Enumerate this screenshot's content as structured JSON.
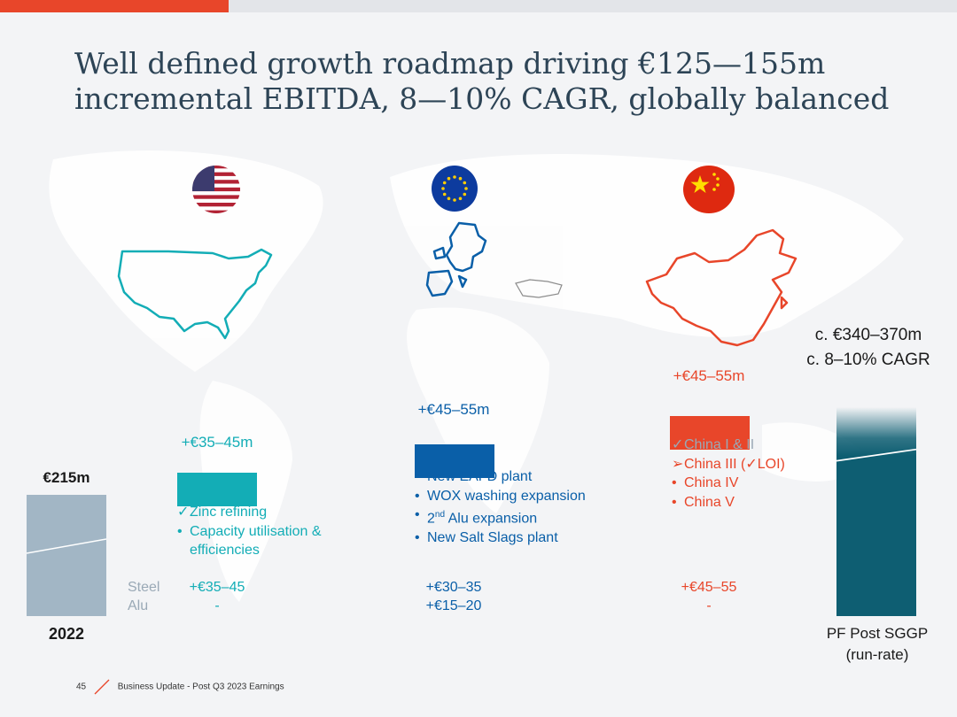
{
  "title": "Well defined growth roadmap driving €125—155m incremental EBITDA, 8—10% CAGR, globally balanced",
  "colors": {
    "accent": "#e8462a",
    "us": "#13adb6",
    "eu": "#0a5fa8",
    "cn": "#e8462a",
    "base": "#9fb4c4",
    "end": "#0e5e72"
  },
  "chart_data": {
    "type": "bar",
    "title": "Well defined growth roadmap driving €125—155m incremental EBITDA, 8—10% CAGR, globally balanced",
    "categories": [
      "2022",
      "US",
      "EU",
      "China",
      "PF Post SGGP (run-rate)"
    ],
    "values_low": [
      215,
      35,
      45,
      45,
      340
    ],
    "values_high": [
      215,
      45,
      55,
      55,
      370
    ],
    "labels": [
      "€215m",
      "+€35–45m",
      "+€45–55m",
      "+€45–55m",
      "c. €340–370m"
    ],
    "annotation": "c. 8–10% CAGR",
    "breakdown": {
      "row_labels": [
        "Steel",
        "Alu"
      ],
      "us": [
        "+€35–45",
        "-"
      ],
      "eu": [
        "+€30–35",
        "+€15–20"
      ],
      "cn": [
        "+€45–55",
        "-"
      ]
    }
  },
  "labels": {
    "base_value": "€215m",
    "base_year": "2022",
    "us_value": "+€35–45m",
    "eu_value": "+€45–55m",
    "cn_value": "+€45–55m",
    "end_value": "c. €340–370m",
    "end_cagr": "c. 8–10% CAGR",
    "end_label_1": "PF Post SGGP",
    "end_label_2": "(run-rate)"
  },
  "us_list": [
    {
      "marker": "✓",
      "text": "Zinc refining"
    },
    {
      "marker": "•",
      "text": "Capacity utilisation &"
    },
    {
      "marker": "",
      "text": "efficiencies"
    }
  ],
  "eu_list": [
    {
      "marker": "•",
      "text": "New EAFD plant"
    },
    {
      "marker": "•",
      "text": "WOX washing expansion"
    },
    {
      "marker": "•",
      "text": "Alu expansion",
      "pre": "2",
      "sup": "nd"
    },
    {
      "marker": "•",
      "text": "New Salt Slags plant"
    }
  ],
  "cn_list": [
    {
      "marker": "✓",
      "text": "China I & II"
    },
    {
      "marker": "➢",
      "text": "China III (✓LOI)"
    },
    {
      "marker": "•",
      "text": "China IV"
    },
    {
      "marker": "•",
      "text": "China V"
    }
  ],
  "rows": {
    "steel": "Steel",
    "alu": "Alu",
    "us_steel": "+€35–45",
    "us_alu": "-",
    "eu_steel": "+€30–35",
    "eu_alu": "+€15–20",
    "cn_steel": "+€45–55",
    "cn_alu": "-"
  },
  "footer": {
    "page": "45",
    "text": "Business Update - Post Q3 2023 Earnings"
  }
}
